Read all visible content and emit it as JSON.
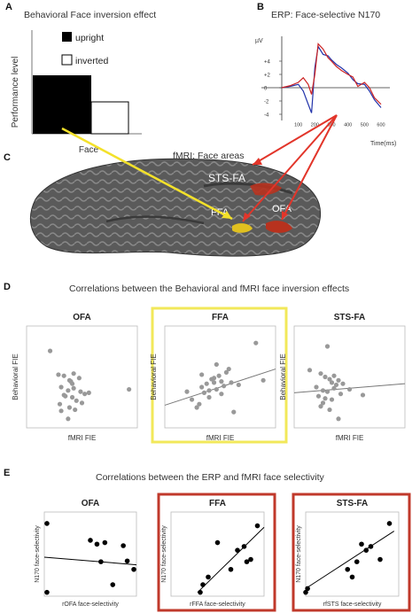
{
  "panelA": {
    "letter": "A",
    "title": "Behavioral Face inversion effect",
    "ylabel": "Performance level",
    "xlabel": "Face",
    "legend": [
      "upright",
      "inverted"
    ]
  },
  "panelB": {
    "letter": "B",
    "title": "ERP: Face-selective N170",
    "unit_label": "µV",
    "xlabel": "Time(ms)",
    "y_ticks": [
      "+4",
      "+2",
      "0",
      "-2",
      "-4"
    ],
    "x_ticks": [
      "100",
      "200",
      "300",
      "400",
      "500",
      "600"
    ]
  },
  "panelC": {
    "letter": "C",
    "title": "fMRI: Face  areas",
    "labels": [
      "STS-FA",
      "FFA",
      "OFA"
    ]
  },
  "panelD": {
    "letter": "D",
    "title": "Correlations between the Behavioral and fMRI face inversion effects",
    "xlabel": "fMRI FIE",
    "ylabel": "Behavioral FIE",
    "plots": [
      "OFA",
      "FFA",
      "STS-FA"
    ]
  },
  "panelE": {
    "letter": "E",
    "title": "Correlations between the ERP and fMRI face selectivity",
    "ylabel": "N170 face-selectivity",
    "plots": [
      "OFA",
      "FFA",
      "STS-FA"
    ],
    "xlabels": [
      "rOFA face-selectivity",
      "rFFA face-selectivity",
      "rfSTS face-selectivity"
    ]
  },
  "colors": {
    "highlight_yellow": "#f2e85a",
    "highlight_red": "#c0392b",
    "arrow_red": "#e2352a",
    "arrow_yellow": "#f3e12a"
  },
  "chart_data": [
    {
      "type": "bar",
      "categories": [
        "Face"
      ],
      "series": [
        {
          "name": "upright",
          "values": [
            0.62
          ]
        },
        {
          "name": "inverted",
          "values": [
            0.36
          ]
        }
      ],
      "title": "Behavioral Face inversion effect",
      "xlabel": "Face",
      "ylabel": "Performance level"
    },
    {
      "type": "line",
      "title": "ERP: Face-selective N170",
      "xlabel": "Time(ms)",
      "ylabel": "µV",
      "xlim": [
        0,
        600
      ],
      "ylim": [
        -4,
        6
      ],
      "x": [
        0,
        50,
        100,
        130,
        160,
        180,
        200,
        220,
        250,
        280,
        300,
        330,
        360,
        400,
        430,
        460,
        500,
        530,
        560,
        600
      ],
      "series": [
        {
          "color": "#2233aa",
          "values": [
            0,
            0.2,
            0.5,
            -0.5,
            -2.5,
            -3.8,
            3.0,
            6.2,
            5.0,
            4.8,
            4.2,
            3.5,
            3.0,
            2.2,
            1.2,
            0.6,
            0.5,
            -0.5,
            -1.8,
            -3.0
          ]
        },
        {
          "color": "#cc2222",
          "values": [
            0,
            0.3,
            0.8,
            1.5,
            0.5,
            -1.0,
            2.0,
            6.6,
            5.8,
            4.5,
            4.0,
            3.2,
            2.6,
            2.0,
            1.6,
            0.2,
            0.8,
            0.0,
            -1.5,
            -2.5
          ]
        }
      ]
    },
    {
      "type": "scatter",
      "title": "OFA",
      "xlabel": "fMRI FIE",
      "ylabel": "Behavioral FIE",
      "xlim": [
        -3,
        5
      ],
      "ylim": [
        -3,
        6
      ],
      "x": [
        -1.3,
        -0.7,
        -0.3,
        0.1,
        0.4,
        0.8,
        -0.5,
        0.0,
        0.4,
        0.9,
        1.5,
        -0.2,
        0.3,
        0.6,
        1.2,
        -0.6,
        0.1,
        0.5,
        1.0,
        0.0,
        -0.3,
        0.3,
        4.4,
        -0.5,
        0.2
      ],
      "y": [
        3.8,
        1.7,
        1.6,
        1.2,
        1.8,
        1.4,
        0.6,
        0.3,
        0.5,
        0.2,
        0.1,
        -0.2,
        -0.3,
        -0.6,
        0.0,
        -0.9,
        -1.2,
        -1.4,
        -0.8,
        -2.2,
        -0.1,
        0.9,
        0.4,
        -1.5,
        1.1
      ]
    },
    {
      "type": "scatter",
      "title": "FFA",
      "xlabel": "fMRI FIE",
      "ylabel": "Behavioral FIE",
      "xlim": [
        -1.5,
        3
      ],
      "ylim": [
        -3,
        6
      ],
      "x": [
        -0.6,
        -0.4,
        -0.2,
        0.0,
        0.1,
        0.2,
        0.3,
        0.4,
        0.5,
        0.6,
        0.7,
        0.8,
        0.9,
        1.0,
        1.1,
        1.3,
        1.5,
        2.2,
        2.5,
        -0.1,
        0.3,
        0.5,
        0.8,
        1.2,
        0.0,
        0.6
      ],
      "y": [
        0.2,
        -0.5,
        -1.2,
        0.6,
        0.1,
        0.9,
        -0.3,
        1.3,
        1.0,
        0.4,
        1.6,
        1.1,
        0.7,
        1.9,
        2.2,
        -1.6,
        0.8,
        4.5,
        1.2,
        -0.9,
        0.3,
        1.4,
        0.0,
        1.0,
        1.7,
        2.6
      ],
      "fit": [
        [
          -1.5,
          -1.0
        ],
        [
          3,
          2.2
        ]
      ]
    },
    {
      "type": "scatter",
      "title": "STS-FA",
      "xlabel": "fMRI FIE",
      "ylabel": "Behavioral FIE",
      "xlim": [
        -1,
        4
      ],
      "ylim": [
        -3,
        6
      ],
      "x": [
        -0.3,
        0.2,
        0.4,
        0.6,
        0.8,
        1.0,
        0.0,
        0.3,
        0.5,
        0.9,
        1.2,
        1.5,
        0.1,
        0.4,
        0.7,
        1.1,
        0.2,
        0.6,
        2.1,
        0.5,
        0.8,
        0.3,
        1.0,
        0.7
      ],
      "y": [
        2.1,
        1.8,
        1.5,
        1.3,
        1.6,
        1.2,
        0.6,
        0.3,
        0.2,
        0.8,
        0.9,
        0.4,
        -0.2,
        -0.4,
        -0.5,
        0.0,
        -1.1,
        -1.4,
        -0.1,
        4.2,
        0.5,
        -0.8,
        -2.2,
        1.0
      ],
      "fit": [
        [
          -1,
          0.1
        ],
        [
          4,
          0.9
        ]
      ]
    },
    {
      "type": "scatter",
      "title": "OFA",
      "xlabel": "rOFA face-selectivity",
      "ylabel": "N170 face-selectivity",
      "xlim": [
        0,
        0.7
      ],
      "ylim": [
        -0.3,
        0.8
      ],
      "x": [
        0.02,
        0.02,
        0.35,
        0.4,
        0.43,
        0.46,
        0.52,
        0.6,
        0.63,
        0.68
      ],
      "y": [
        0.65,
        -0.25,
        0.43,
        0.38,
        0.15,
        0.4,
        -0.15,
        0.36,
        0.16,
        0.05
      ],
      "fit": [
        [
          0,
          0.21
        ],
        [
          0.7,
          0.11
        ]
      ]
    },
    {
      "type": "scatter",
      "title": "FFA",
      "xlabel": "rFFA face-selectivity",
      "ylabel": "N170 face-selectivity",
      "xlim": [
        0,
        0.7
      ],
      "ylim": [
        -0.3,
        0.8
      ],
      "x": [
        0.22,
        0.24,
        0.28,
        0.35,
        0.45,
        0.5,
        0.55,
        0.57,
        0.6,
        0.65
      ],
      "y": [
        -0.25,
        -0.15,
        -0.05,
        0.4,
        0.05,
        0.3,
        0.35,
        0.15,
        0.18,
        0.62
      ],
      "fit": [
        [
          0.2,
          -0.25
        ],
        [
          0.7,
          0.6
        ]
      ]
    },
    {
      "type": "scatter",
      "title": "STS-FA",
      "xlabel": "rfSTS face-selectivity",
      "ylabel": "N170 face-selectivity",
      "xlim": [
        0,
        1
      ],
      "ylim": [
        -0.3,
        0.8
      ],
      "x": [
        0.0,
        0.02,
        0.45,
        0.5,
        0.55,
        0.6,
        0.65,
        0.7,
        0.8,
        0.9
      ],
      "y": [
        -0.25,
        -0.2,
        0.05,
        -0.05,
        0.15,
        0.38,
        0.3,
        0.35,
        0.18,
        0.65
      ],
      "fit": [
        [
          0,
          -0.2
        ],
        [
          0.95,
          0.55
        ]
      ]
    }
  ]
}
